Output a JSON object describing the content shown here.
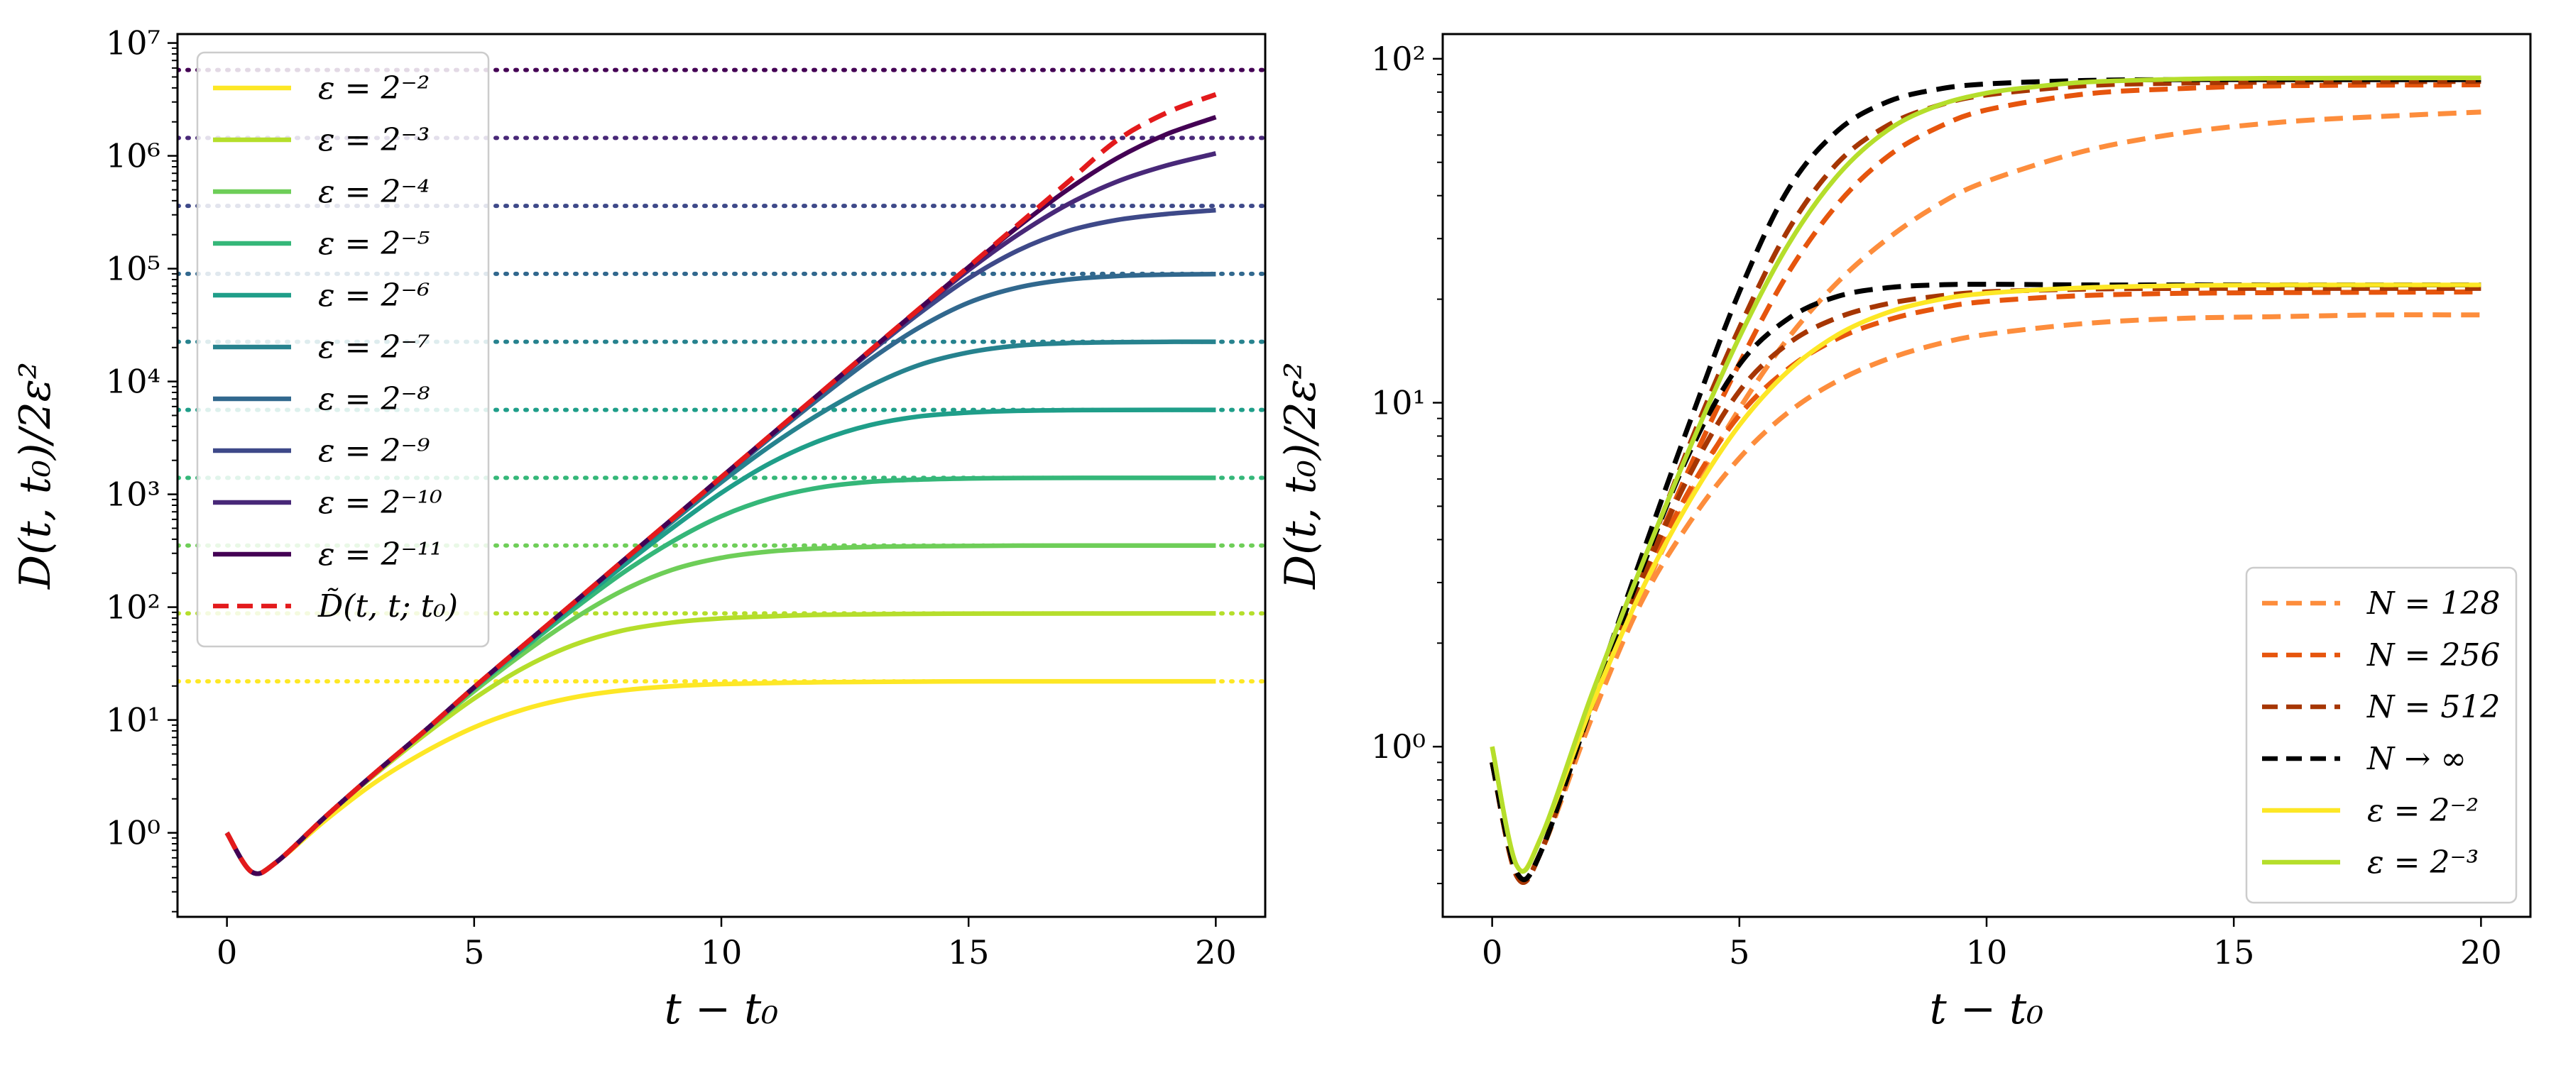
{
  "chart_data": [
    {
      "type": "line",
      "xlabel": "t − t₀",
      "ylabel": "D(t, t₀)/2ε²",
      "xlim": [
        -1,
        21
      ],
      "ylim": [
        0.18,
        12000000
      ],
      "yscale": "log",
      "grid": false,
      "legend_position": "top-left",
      "x_ticks": [
        0,
        5,
        10,
        15,
        20
      ],
      "x_tick_labels": [
        "0",
        "5",
        "10",
        "15",
        "20"
      ],
      "y_ticks": [
        1,
        10,
        100,
        1000,
        10000,
        100000,
        1000000,
        10000000
      ],
      "y_tick_labels": [
        "10⁰",
        "10¹",
        "10²",
        "10³",
        "10⁴",
        "10⁵",
        "10⁶",
        "10⁷"
      ],
      "series": [
        {
          "name": "ε = 2⁻²",
          "color": "#fde725",
          "style": "solid",
          "plateau": 22,
          "x": [
            0,
            0.5,
            1,
            2,
            3,
            4,
            5,
            6,
            7,
            8,
            9,
            10,
            12,
            14,
            16,
            20
          ],
          "y": [
            1,
            0.45,
            0.55,
            1.3,
            2.8,
            5.2,
            8.6,
            12.4,
            15.8,
            18.3,
            19.9,
            20.8,
            21.6,
            21.9,
            22,
            22
          ]
        },
        {
          "name": "ε = 2⁻³",
          "color": "#b5de2b",
          "style": "solid",
          "plateau": 88,
          "x": [
            0,
            0.5,
            1,
            2,
            3,
            4,
            5,
            6,
            7,
            8,
            9,
            10,
            11,
            12,
            14,
            16,
            20
          ],
          "y": [
            1,
            0.45,
            0.55,
            1.4,
            3.3,
            7.4,
            15.5,
            29,
            46,
            62,
            73,
            79.5,
            83,
            85.5,
            87.3,
            87.8,
            88
          ]
        },
        {
          "name": "ε = 2⁻⁴",
          "color": "#6ece58",
          "style": "solid",
          "plateau": 352,
          "x": [
            0,
            0.5,
            1,
            2,
            3,
            4,
            5,
            6,
            7,
            8,
            9,
            10,
            11,
            12,
            13,
            14,
            16,
            20
          ],
          "y": [
            1,
            0.45,
            0.55,
            1.4,
            3.4,
            7.9,
            18,
            39,
            78,
            140,
            214,
            274,
            312,
            332,
            342,
            347,
            351,
            352
          ]
        },
        {
          "name": "ε = 2⁻⁵",
          "color": "#35b779",
          "style": "solid",
          "plateau": 1400,
          "x": [
            0,
            0.5,
            1,
            2,
            3,
            4,
            5,
            6,
            7,
            8,
            9,
            10,
            11,
            12,
            13,
            14,
            15,
            16,
            18,
            20
          ],
          "y": [
            1,
            0.45,
            0.55,
            1.4,
            3.4,
            8,
            19,
            43,
            95,
            200,
            380,
            640,
            920,
            1150,
            1290,
            1350,
            1380,
            1395,
            1400,
            1400
          ]
        },
        {
          "name": "ε = 2⁻⁶",
          "color": "#1f9e89",
          "style": "solid",
          "plateau": 5600,
          "x": [
            0,
            0.5,
            1,
            2,
            3,
            4,
            5,
            6,
            7,
            8,
            9,
            10,
            11,
            12,
            13,
            14,
            15,
            16,
            17,
            18,
            20
          ],
          "y": [
            1,
            0.45,
            0.55,
            1.4,
            3.4,
            8,
            19.5,
            45,
            103,
            230,
            500,
            1030,
            1900,
            3000,
            4100,
            4900,
            5300,
            5500,
            5570,
            5590,
            5600
          ]
        },
        {
          "name": "ε = 2⁻⁷",
          "color": "#26828e",
          "style": "solid",
          "plateau": 22500,
          "x": [
            0,
            0.5,
            1,
            2,
            3,
            4,
            5,
            6,
            7,
            8,
            9,
            10,
            11,
            12,
            13,
            14,
            15,
            16,
            17,
            18,
            19,
            20
          ],
          "y": [
            1,
            0.45,
            0.55,
            1.4,
            3.4,
            8,
            19.5,
            46,
            108,
            250,
            570,
            1280,
            2700,
            5200,
            9100,
            14000,
            18100,
            20800,
            21900,
            22300,
            22450,
            22500
          ]
        },
        {
          "name": "ε = 2⁻⁸",
          "color": "#31688e",
          "style": "solid",
          "plateau": 90000,
          "x": [
            0,
            0.5,
            1,
            2,
            3,
            4,
            5,
            6,
            7,
            8,
            9,
            10,
            11,
            12,
            13,
            14,
            15,
            16,
            17,
            18,
            19,
            20
          ],
          "y": [
            1,
            0.45,
            0.55,
            1.4,
            3.4,
            8,
            19.5,
            46,
            108,
            255,
            595,
            1390,
            3200,
            7200,
            15500,
            30000,
            50000,
            68000,
            80000,
            86000,
            88500,
            89500
          ]
        },
        {
          "name": "ε = 2⁻⁹",
          "color": "#3e4989",
          "style": "solid",
          "plateau": 360000,
          "x": [
            0,
            0.5,
            1,
            2,
            3,
            4,
            5,
            6,
            7,
            8,
            9,
            10,
            11,
            12,
            13,
            14,
            15,
            16,
            17,
            18,
            19,
            20
          ],
          "y": [
            1,
            0.45,
            0.55,
            1.4,
            3.4,
            8,
            19.5,
            46,
            108,
            255,
            600,
            1420,
            3330,
            7800,
            18000,
            40000,
            82000,
            145000,
            215000,
            270000,
            305000,
            330000
          ]
        },
        {
          "name": "ε = 2⁻¹⁰",
          "color": "#482878",
          "style": "solid",
          "plateau": 1440000,
          "x": [
            0,
            0.5,
            1,
            2,
            3,
            4,
            5,
            6,
            7,
            8,
            9,
            10,
            11,
            12,
            13,
            14,
            15,
            16,
            17,
            18,
            19,
            20
          ],
          "y": [
            1,
            0.45,
            0.55,
            1.4,
            3.4,
            8,
            19.5,
            46,
            108,
            255,
            600,
            1420,
            3350,
            7900,
            18600,
            43000,
            97000,
            200000,
            370000,
            590000,
            820000,
            1050000
          ]
        },
        {
          "name": "ε = 2⁻¹¹",
          "color": "#440154",
          "style": "solid",
          "plateau": 5760000,
          "x": [
            0,
            0.5,
            1,
            2,
            3,
            4,
            5,
            6,
            7,
            8,
            9,
            10,
            11,
            12,
            13,
            14,
            15,
            16,
            17,
            18,
            19,
            20
          ],
          "y": [
            1,
            0.45,
            0.55,
            1.4,
            3.4,
            8,
            19.5,
            46,
            108,
            255,
            600,
            1420,
            3350,
            7900,
            18700,
            44000,
            103000,
            235000,
            500000,
            950000,
            1550000,
            2200000
          ]
        },
        {
          "name": "D̃(t, t; t₀)",
          "color": "#e31a1c",
          "style": "dashed",
          "x": [
            0,
            0.5,
            1,
            2,
            3,
            4,
            5,
            6,
            7,
            8,
            9,
            10,
            11,
            12,
            13,
            14,
            15,
            16,
            17,
            18,
            19,
            20
          ],
          "y": [
            1,
            0.45,
            0.55,
            1.4,
            3.4,
            8,
            19.5,
            46,
            108,
            255,
            600,
            1420,
            3350,
            7900,
            18700,
            44000,
            104000,
            245000,
            580000,
            1370000,
            2400000,
            3500000
          ]
        }
      ],
      "legend": [
        "ε = 2⁻²",
        "ε = 2⁻³",
        "ε = 2⁻⁴",
        "ε = 2⁻⁵",
        "ε = 2⁻⁶",
        "ε = 2⁻⁷",
        "ε = 2⁻⁸",
        "ε = 2⁻⁹",
        "ε = 2⁻¹⁰",
        "ε = 2⁻¹¹",
        "D̃(t, t; t₀)"
      ]
    },
    {
      "type": "line",
      "xlabel": "t − t₀",
      "ylabel": "D(t, t₀)/2ε²",
      "xlim": [
        -1,
        21
      ],
      "ylim": [
        0.32,
        118
      ],
      "yscale": "log",
      "grid": false,
      "legend_position": "lower-right",
      "x_ticks": [
        0,
        5,
        10,
        15,
        20
      ],
      "x_tick_labels": [
        "0",
        "5",
        "10",
        "15",
        "20"
      ],
      "y_ticks": [
        1,
        10,
        100
      ],
      "y_tick_labels": [
        "10⁰",
        "10¹",
        "10²"
      ],
      "series": [
        {
          "name": "N = 128",
          "color": "#fd8d3c",
          "style": "dashed",
          "x": [
            0,
            0.5,
            1,
            2,
            3,
            4,
            5,
            6,
            7,
            8,
            9,
            10,
            12,
            14,
            16,
            18,
            20
          ],
          "y": [
            0.9,
            0.42,
            0.5,
            1.2,
            2.6,
            4.5,
            6.9,
            9.4,
            11.6,
            13.4,
            14.8,
            15.8,
            17.0,
            17.6,
            17.8,
            18.0,
            18.0
          ]
        },
        {
          "name": "N = 128",
          "color": "#fd8d3c",
          "style": "dashed",
          "x": [
            0,
            0.5,
            1,
            2,
            3,
            4,
            5,
            6,
            7,
            8,
            9,
            10,
            12,
            14,
            16,
            18,
            20
          ],
          "y": [
            0.9,
            0.42,
            0.5,
            1.2,
            2.7,
            5.4,
            9.6,
            15.5,
            22.5,
            30,
            37.5,
            44,
            54,
            61,
            65.5,
            68,
            70
          ]
        },
        {
          "name": "N = 256",
          "color": "#e6550d",
          "style": "dashed",
          "x": [
            0,
            0.5,
            1,
            2,
            3,
            4,
            5,
            6,
            7,
            8,
            9,
            10,
            12,
            14,
            16,
            20
          ],
          "y": [
            0.9,
            0.42,
            0.5,
            1.3,
            2.9,
            5.6,
            9.2,
            12.6,
            15.4,
            17.4,
            18.8,
            19.7,
            20.5,
            20.8,
            20.9,
            21.0
          ]
        },
        {
          "name": "N = 256",
          "color": "#e6550d",
          "style": "dashed",
          "x": [
            0,
            0.5,
            1,
            2,
            3,
            4,
            5,
            6,
            7,
            8,
            9,
            10,
            12,
            14,
            16,
            20
          ],
          "y": [
            0.9,
            0.42,
            0.5,
            1.3,
            3.0,
            6.5,
            13,
            24,
            38,
            52,
            63,
            71,
            79,
            82,
            83.5,
            84
          ]
        },
        {
          "name": "N = 512",
          "color": "#a63603",
          "style": "dashed",
          "x": [
            0,
            0.5,
            1,
            2,
            3,
            4,
            5,
            6,
            7,
            8,
            9,
            10,
            12,
            14,
            16,
            20
          ],
          "y": [
            0.9,
            0.42,
            0.5,
            1.3,
            3.0,
            6.2,
            10.8,
            14.9,
            17.7,
            19.4,
            20.4,
            21.0,
            21.4,
            21.5,
            21.5,
            21.5
          ]
        },
        {
          "name": "N = 512",
          "color": "#a63603",
          "style": "dashed",
          "x": [
            0,
            0.5,
            1,
            2,
            3,
            4,
            5,
            6,
            7,
            8,
            9,
            10,
            12,
            14,
            16,
            20
          ],
          "y": [
            0.9,
            0.42,
            0.5,
            1.3,
            3.2,
            7.6,
            16.5,
            32,
            50,
            64,
            73,
            78.5,
            83.5,
            85,
            85.5,
            86
          ]
        },
        {
          "name": "N → ∞",
          "color": "#000000",
          "style": "dashed",
          "x": [
            0,
            0.5,
            1,
            2,
            3,
            4,
            5,
            6,
            7,
            8,
            9,
            10,
            12,
            14,
            16,
            20
          ],
          "y": [
            0.9,
            0.43,
            0.5,
            1.3,
            3.2,
            7.2,
            12.9,
            17.6,
            20.4,
            21.6,
            22.0,
            22.1,
            22.0,
            22.0,
            22.0,
            22.0
          ]
        },
        {
          "name": "N → ∞",
          "color": "#000000",
          "style": "dashed",
          "x": [
            0,
            0.5,
            1,
            2,
            3,
            4,
            5,
            6,
            7,
            8,
            9,
            10,
            12,
            14,
            16,
            20
          ],
          "y": [
            0.9,
            0.43,
            0.5,
            1.35,
            3.5,
            8.8,
            21,
            42,
            62,
            75,
            81.5,
            84.5,
            86.5,
            87,
            87,
            87
          ]
        },
        {
          "name": "ε = 2⁻²",
          "color": "#fde725",
          "style": "solid",
          "x": [
            0,
            0.5,
            1,
            2,
            3,
            4,
            5,
            6,
            7,
            8,
            9,
            10,
            12,
            14,
            16,
            20
          ],
          "y": [
            1,
            0.45,
            0.55,
            1.3,
            2.8,
            5.2,
            8.6,
            12.4,
            15.8,
            18.3,
            19.9,
            20.8,
            21.6,
            21.9,
            22,
            22
          ]
        },
        {
          "name": "ε = 2⁻³",
          "color": "#b5de2b",
          "style": "solid",
          "x": [
            0,
            0.5,
            1,
            2,
            3,
            4,
            5,
            6,
            7,
            8,
            9,
            10,
            11,
            12,
            14,
            16,
            20
          ],
          "y": [
            1,
            0.45,
            0.55,
            1.4,
            3.3,
            7.4,
            15.5,
            29,
            46,
            62,
            73,
            79.5,
            83,
            85.5,
            87.3,
            87.8,
            88
          ]
        }
      ],
      "legend": [
        {
          "label": "N = 128",
          "color": "#fd8d3c",
          "style": "dashed"
        },
        {
          "label": "N = 256",
          "color": "#e6550d",
          "style": "dashed"
        },
        {
          "label": "N = 512",
          "color": "#a63603",
          "style": "dashed"
        },
        {
          "label": "N → ∞",
          "color": "#000000",
          "style": "dashed"
        },
        {
          "label": "ε = 2⁻²",
          "color": "#fde725",
          "style": "solid"
        },
        {
          "label": "ε = 2⁻³",
          "color": "#b5de2b",
          "style": "solid"
        }
      ]
    }
  ]
}
